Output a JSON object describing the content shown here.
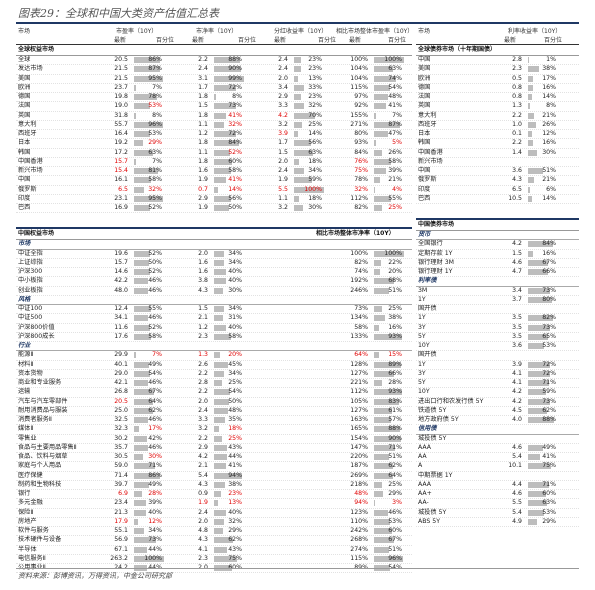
{
  "title": "图表29：全球和中国大类资产估值汇总表",
  "source": "资料来源：彭博资讯，万得资讯，中金公司研究部",
  "left_header": {
    "c1": "市场",
    "c2": "市盈率（10Y）",
    "c3": "市净率（10Y）",
    "c4": "分红收益率（10Y）",
    "c5": "相比市场整体市盈率（10Y）",
    "s1": "最新",
    "s2": "百分位"
  },
  "right_header": {
    "c1": "市场",
    "c2": "利率收益率（10Y）",
    "s1": "最新",
    "s2": "百分位"
  },
  "top_band": "全球权益市场",
  "top_band_right": "全球债券市场（十年期国债）",
  "mid_band": "中国权益市场",
  "mid_band_mid": "相比市场整体市净率（10Y）",
  "mid_band_right": "中国债券市场",
  "global_rows": [
    {
      "n": "全球",
      "a": "20.5",
      "ap": "86%",
      "ar": 0.86,
      "b": "2.2",
      "bp": "88%",
      "br": 0.88,
      "c": "2.4",
      "cp": "23%",
      "cr": 0.23,
      "d": "100%",
      "dp": "100%",
      "dr": 1.0
    },
    {
      "n": "发达市场",
      "a": "21.5",
      "ap": "87%",
      "ar": 0.87,
      "b": "2.4",
      "bp": "90%",
      "br": 0.9,
      "c": "2.4",
      "cp": "23%",
      "cr": 0.23,
      "d": "104%",
      "dp": "63%",
      "dr": 0.63
    },
    {
      "n": "美国",
      "a": "21.5",
      "ap": "95%",
      "ar": 0.95,
      "b": "3.1",
      "bp": "99%",
      "br": 0.99,
      "c": "2.0",
      "cp": "13%",
      "cr": 0.13,
      "d": "104%",
      "dp": "74%",
      "dr": 0.74
    },
    {
      "n": "欧洲",
      "a": "23.7",
      "ap": "7%",
      "ar": 0.07,
      "b": "1.7",
      "bp": "72%",
      "br": 0.72,
      "c": "3.4",
      "cp": "33%",
      "cr": 0.33,
      "d": "115%",
      "dp": "54%",
      "dr": 0.54
    },
    {
      "n": "德国",
      "a": "19.8",
      "ap": "78%",
      "ar": 0.78,
      "b": "1.8",
      "bp": "8%",
      "br": 0.08,
      "c": "2.9",
      "cp": "23%",
      "cr": 0.23,
      "d": "97%",
      "dp": "48%",
      "dr": 0.48
    },
    {
      "n": "法国",
      "a": "19.0",
      "ap": "53%",
      "ar": 0.53,
      "rap": true,
      "b": "1.5",
      "bp": "73%",
      "br": 0.73,
      "c": "3.3",
      "cp": "32%",
      "cr": 0.32,
      "d": "92%",
      "dp": "41%",
      "dr": 0.41
    },
    {
      "n": "英国",
      "a": "31.8",
      "ap": "8%",
      "ar": 0.08,
      "b": "1.8",
      "bp": "41%",
      "br": 0.41,
      "rbp": true,
      "c": "4.2",
      "cp": "70%",
      "cr": 0.7,
      "rc": true,
      "d": "155%",
      "dp": "7%",
      "dr": 0.07
    },
    {
      "n": "意大利",
      "a": "55.7",
      "ap": "96%",
      "ar": 0.96,
      "b": "1.1",
      "bp": "32%",
      "br": 0.32,
      "rbp": true,
      "c": "3.2",
      "cp": "25%",
      "cr": 0.25,
      "d": "271%",
      "dp": "87%",
      "dr": 0.87
    },
    {
      "n": "西班牙",
      "a": "16.4",
      "ap": "53%",
      "ar": 0.53,
      "b": "1.2",
      "bp": "72%",
      "br": 0.72,
      "c": "3.9",
      "cp": "14%",
      "cr": 0.14,
      "rc": true,
      "d": "80%",
      "dp": "47%",
      "dr": 0.47
    },
    {
      "n": "日本",
      "a": "19.2",
      "ap": "29%",
      "ar": 0.29,
      "rap": true,
      "b": "1.8",
      "bp": "84%",
      "br": 0.84,
      "c": "1.7",
      "cp": "56%",
      "cr": 0.56,
      "d": "93%",
      "dp": "5%",
      "dr": 0.05,
      "rdp": true
    },
    {
      "n": "韩国",
      "a": "17.2",
      "ap": "63%",
      "ar": 0.63,
      "b": "1.1",
      "bp": "52%",
      "br": 0.52,
      "rbp": true,
      "c": "1.5",
      "cp": "63%",
      "cr": 0.63,
      "d": "84%",
      "dp": "26%",
      "dr": 0.26
    },
    {
      "n": "中国香港",
      "a": "15.7",
      "ap": "7%",
      "ar": 0.07,
      "ra": true,
      "b": "1.8",
      "bp": "60%",
      "br": 0.6,
      "c": "2.0",
      "cp": "18%",
      "cr": 0.18,
      "d": "76%",
      "dp": "58%",
      "dr": 0.58,
      "rd": true
    },
    {
      "n": "新兴市场",
      "a": "15.4",
      "ap": "81%",
      "ar": 0.81,
      "ra": true,
      "b": "1.6",
      "bp": "58%",
      "br": 0.58,
      "c": "2.4",
      "cp": "34%",
      "cr": 0.34,
      "d": "75%",
      "dp": "39%",
      "dr": 0.39,
      "rd": true
    },
    {
      "n": "中国",
      "a": "16.1",
      "ap": "58%",
      "ar": 0.58,
      "b": "1.9",
      "bp": "41%",
      "br": 0.41,
      "rbp": true,
      "c": "1.9",
      "cp": "59%",
      "cr": 0.59,
      "d": "78%",
      "dp": "21%",
      "dr": 0.21
    },
    {
      "n": "俄罗斯",
      "a": "6.5",
      "ap": "32%",
      "ar": 0.32,
      "ra": true,
      "rap": true,
      "b": "0.7",
      "bp": "14%",
      "br": 0.14,
      "rb": true,
      "rbp": true,
      "c": "5.5",
      "cp": "100%",
      "cr": 1.0,
      "rc": true,
      "rcp": true,
      "d": "32%",
      "dp": "4%",
      "dr": 0.04,
      "rd": true,
      "rdp": true
    },
    {
      "n": "印度",
      "a": "23.1",
      "ap": "95%",
      "ar": 0.95,
      "b": "2.9",
      "bp": "56%",
      "br": 0.56,
      "c": "1.1",
      "cp": "18%",
      "cr": 0.18,
      "d": "112%",
      "dp": "55%",
      "dr": 0.55
    },
    {
      "n": "巴西",
      "a": "16.9",
      "ap": "52%",
      "ar": 0.52,
      "b": "1.9",
      "bp": "50%",
      "br": 0.5,
      "c": "3.2",
      "cp": "30%",
      "cr": 0.3,
      "d": "82%",
      "dp": "25%",
      "dr": 0.25,
      "rdp": true
    }
  ],
  "bond_global": [
    {
      "n": "中国",
      "a": "2.8",
      "p": "1%",
      "r": 0.01
    },
    {
      "n": "美国",
      "a": "2.3",
      "p": "38%",
      "r": 0.38
    },
    {
      "n": "欧洲",
      "a": "0.5",
      "p": "17%",
      "r": 0.17
    },
    {
      "n": "德国",
      "a": "0.8",
      "p": "16%",
      "r": 0.16
    },
    {
      "n": "法国",
      "a": "0.8",
      "p": "14%",
      "r": 0.14
    },
    {
      "n": "英国",
      "a": "1.3",
      "p": "8%",
      "r": 0.08
    },
    {
      "n": "意大利",
      "a": "2.2",
      "p": "21%",
      "r": 0.21
    },
    {
      "n": "西班牙",
      "a": "1.0",
      "p": "26%",
      "r": 0.26
    },
    {
      "n": "日本",
      "a": "0.1",
      "p": "12%",
      "r": 0.12
    },
    {
      "n": "韩国",
      "a": "2.2",
      "p": "16%",
      "r": 0.16
    },
    {
      "n": "中国香港",
      "a": "1.4",
      "p": "30%",
      "r": 0.3
    },
    {
      "n": "新兴市场",
      "a": "",
      "p": "",
      "r": 0
    },
    {
      "n": "中国",
      "a": "3.6",
      "p": "51%",
      "r": 0.51
    },
    {
      "n": "俄罗斯",
      "a": "4.3",
      "p": "21%",
      "r": 0.21
    },
    {
      "n": "印度",
      "a": "6.5",
      "p": "6%",
      "r": 0.06
    },
    {
      "n": "巴西",
      "a": "10.5",
      "p": "14%",
      "r": 0.14
    }
  ],
  "china_rows": [
    {
      "g": "市场"
    },
    {
      "n": "中证全指",
      "a": "19.6",
      "ap": "52%",
      "ar": 0.52,
      "b": "2.0",
      "bp": "34%",
      "br": 0.34,
      "d": "100%",
      "dp": "100%",
      "dr": 1.0
    },
    {
      "n": "上证综指",
      "a": "15.7",
      "ap": "50%",
      "ar": 0.5,
      "b": "1.6",
      "bp": "34%",
      "br": 0.34,
      "d": "82%",
      "dp": "22%",
      "dr": 0.22
    },
    {
      "n": "沪深300",
      "a": "14.6",
      "ap": "52%",
      "ar": 0.52,
      "b": "1.6",
      "bp": "40%",
      "br": 0.4,
      "d": "74%",
      "dp": "20%",
      "dr": 0.2
    },
    {
      "n": "中小板指",
      "a": "42.2",
      "ap": "46%",
      "ar": 0.46,
      "b": "3.8",
      "bp": "40%",
      "br": 0.4,
      "d": "192%",
      "dp": "68%",
      "dr": 0.68
    },
    {
      "n": "创业板指",
      "a": "48.0",
      "ap": "46%",
      "ar": 0.46,
      "b": "4.3",
      "bp": "30%",
      "br": 0.3,
      "d": "246%",
      "dp": "51%",
      "dr": 0.51
    },
    {
      "g": "风格"
    },
    {
      "n": "中证100",
      "a": "12.4",
      "ap": "55%",
      "ar": 0.55,
      "b": "1.5",
      "bp": "34%",
      "br": 0.34,
      "d": "73%",
      "dp": "25%",
      "dr": 0.25
    },
    {
      "n": "中证500",
      "a": "34.1",
      "ap": "46%",
      "ar": 0.46,
      "b": "2.1",
      "bp": "31%",
      "br": 0.31,
      "d": "134%",
      "dp": "38%",
      "dr": 0.38
    },
    {
      "n": "沪深800价值",
      "a": "11.6",
      "ap": "52%",
      "ar": 0.52,
      "b": "1.2",
      "bp": "40%",
      "br": 0.4,
      "d": "58%",
      "dp": "16%",
      "dr": 0.16
    },
    {
      "n": "沪深800成长",
      "a": "17.6",
      "ap": "58%",
      "ar": 0.58,
      "b": "2.3",
      "bp": "58%",
      "br": 0.58,
      "d": "133%",
      "dp": "93%",
      "dr": 0.93
    },
    {
      "g": "行业"
    },
    {
      "n": "能源Ⅱ",
      "a": "29.9",
      "ap": "7%",
      "ar": 0.07,
      "rap": true,
      "b": "1.3",
      "bp": "20%",
      "br": 0.2,
      "rb": true,
      "rbp": true,
      "d": "64%",
      "dp": "15%",
      "dr": 0.15,
      "rd": true,
      "rdp": true
    },
    {
      "n": "材料Ⅱ",
      "a": "40.1",
      "ap": "49%",
      "ar": 0.49,
      "b": "2.6",
      "bp": "45%",
      "br": 0.45,
      "d": "128%",
      "dp": "89%",
      "dr": 0.89
    },
    {
      "n": "资本货物",
      "a": "29.0",
      "ap": "54%",
      "ar": 0.54,
      "b": "2.2",
      "bp": "34%",
      "br": 0.34,
      "d": "127%",
      "dp": "66%",
      "dr": 0.66
    },
    {
      "n": "商业和专业服务",
      "a": "42.1",
      "ap": "46%",
      "ar": 0.46,
      "b": "2.8",
      "bp": "25%",
      "br": 0.25,
      "d": "221%",
      "dp": "28%",
      "dr": 0.28
    },
    {
      "n": "运输",
      "a": "26.8",
      "ap": "67%",
      "ar": 0.67,
      "b": "2.2",
      "bp": "54%",
      "br": 0.54,
      "d": "112%",
      "dp": "93%",
      "dr": 0.93
    },
    {
      "n": "汽车与汽车零部件",
      "a": "20.5",
      "ap": "64%",
      "ar": 0.64,
      "ra": true,
      "b": "2.0",
      "bp": "50%",
      "br": 0.5,
      "d": "105%",
      "dp": "83%",
      "dr": 0.83
    },
    {
      "n": "耐用消费品与服装",
      "a": "25.0",
      "ap": "62%",
      "ar": 0.62,
      "b": "2.4",
      "bp": "48%",
      "br": 0.48,
      "d": "127%",
      "dp": "61%",
      "dr": 0.61
    },
    {
      "n": "消费者服务Ⅱ",
      "a": "32.5",
      "ap": "46%",
      "ar": 0.46,
      "b": "3.3",
      "bp": "35%",
      "br": 0.35,
      "d": "163%",
      "dp": "57%",
      "dr": 0.57
    },
    {
      "n": "媒体Ⅱ",
      "a": "32.3",
      "ap": "17%",
      "ar": 0.17,
      "rap": true,
      "b": "3.2",
      "bp": "18%",
      "br": 0.18,
      "rbp": true,
      "d": "165%",
      "dp": "88%",
      "dr": 0.88
    },
    {
      "n": "零售业",
      "a": "30.2",
      "ap": "42%",
      "ar": 0.42,
      "b": "2.2",
      "bp": "25%",
      "br": 0.25,
      "rbp": true,
      "d": "154%",
      "dp": "90%",
      "dr": 0.9
    },
    {
      "n": "食品与主要用品零售Ⅱ",
      "a": "35.7",
      "ap": "46%",
      "ar": 0.46,
      "b": "2.9",
      "bp": "43%",
      "br": 0.43,
      "d": "147%",
      "dp": "71%",
      "dr": 0.71
    },
    {
      "n": "食品、饮料与烟草",
      "a": "30.5",
      "ap": "30%",
      "ar": 0.3,
      "rap": true,
      "b": "4.2",
      "bp": "44%",
      "br": 0.44,
      "d": "220%",
      "dp": "51%",
      "dr": 0.51
    },
    {
      "n": "家庭与个人用品",
      "a": "59.0",
      "ap": "71%",
      "ar": 0.71,
      "b": "2.1",
      "bp": "41%",
      "br": 0.41,
      "d": "187%",
      "dp": "62%",
      "dr": 0.62
    },
    {
      "n": "医疗保健",
      "a": "71.4",
      "ap": "86%",
      "ar": 0.86,
      "b": "5.4",
      "bp": "94%",
      "br": 0.94,
      "d": "269%",
      "dp": "64%",
      "dr": 0.64
    },
    {
      "n": "制药和生物科技",
      "a": "39.7",
      "ap": "49%",
      "ar": 0.49,
      "b": "4.3",
      "bp": "38%",
      "br": 0.38,
      "d": "218%",
      "dp": "25%",
      "dr": 0.25
    },
    {
      "n": "银行",
      "a": "6.9",
      "ap": "28%",
      "ar": 0.28,
      "ra": true,
      "rap": true,
      "b": "0.9",
      "bp": "23%",
      "br": 0.23,
      "rbp": true,
      "d": "48%",
      "dp": "29%",
      "dr": 0.29,
      "rd": true
    },
    {
      "n": "多元金融",
      "a": "23.4",
      "ap": "39%",
      "ar": 0.39,
      "b": "1.9",
      "bp": "13%",
      "br": 0.13,
      "rb": true,
      "rbp": true,
      "d": "94%",
      "dp": "3%",
      "dr": 0.03,
      "rd": true,
      "rdp": true
    },
    {
      "n": "保险Ⅱ",
      "a": "21.3",
      "ap": "40%",
      "ar": 0.4,
      "b": "2.4",
      "bp": "40%",
      "br": 0.4,
      "d": "123%",
      "dp": "46%",
      "dr": 0.46
    },
    {
      "n": "房地产",
      "a": "17.9",
      "ap": "12%",
      "ar": 0.12,
      "ra": true,
      "rap": true,
      "b": "2.0",
      "bp": "32%",
      "br": 0.32,
      "d": "110%",
      "dp": "53%",
      "dr": 0.53
    },
    {
      "n": "软件与服务",
      "a": "55.1",
      "ap": "34%",
      "ar": 0.34,
      "b": "4.8",
      "bp": "29%",
      "br": 0.29,
      "d": "242%",
      "dp": "60%",
      "dr": 0.6
    },
    {
      "n": "技术硬件与设备",
      "a": "56.9",
      "ap": "73%",
      "ar": 0.73,
      "b": "4.3",
      "bp": "62%",
      "br": 0.62,
      "d": "268%",
      "dp": "67%",
      "dr": 0.67
    },
    {
      "n": "半导体",
      "a": "67.1",
      "ap": "44%",
      "ar": 0.44,
      "b": "4.1",
      "bp": "43%",
      "br": 0.43,
      "d": "274%",
      "dp": "51%",
      "dr": 0.51
    },
    {
      "n": "电信服务Ⅱ",
      "a": "263.2",
      "ap": "100%",
      "ar": 1.0,
      "b": "2.3",
      "bp": "75%",
      "br": 0.75,
      "d": "115%",
      "dp": "96%",
      "dr": 0.96
    },
    {
      "n": "公用事业Ⅱ",
      "a": "24.2",
      "ap": "44%",
      "ar": 0.44,
      "b": "2.0",
      "bp": "60%",
      "br": 0.6,
      "d": "89%",
      "dp": "54%",
      "dr": 0.54
    }
  ],
  "china_bonds": [
    {
      "g": "货币"
    },
    {
      "n": "全国银行",
      "a": "4.2",
      "p": "84%",
      "r": 0.84
    },
    {
      "n": "定期存款 1Y",
      "a": "1.5",
      "p": "16%",
      "r": 0.16
    },
    {
      "n": "银行理财 3M",
      "a": "4.6",
      "p": "67%",
      "r": 0.67
    },
    {
      "n": "银行理财 1Y",
      "a": "4.7",
      "p": "66%",
      "r": 0.66
    },
    {
      "g": "利率债"
    },
    {
      "n": "3M",
      "a": "3.4",
      "p": "73%",
      "r": 0.73
    },
    {
      "n": "1Y",
      "a": "3.7",
      "p": "80%",
      "r": 0.8
    },
    {
      "n": "国开债",
      "a": "",
      "p": "",
      "r": 0
    },
    {
      "n": "1Y",
      "a": "3.5",
      "p": "82%",
      "r": 0.82
    },
    {
      "n": "3Y",
      "a": "3.5",
      "p": "73%",
      "r": 0.73
    },
    {
      "n": "5Y",
      "a": "3.5",
      "p": "65%",
      "r": 0.65
    },
    {
      "n": "10Y",
      "a": "3.6",
      "p": "53%",
      "r": 0.53
    },
    {
      "n": "国开债",
      "a": "",
      "p": "",
      "r": 0
    },
    {
      "n": "1Y",
      "a": "3.9",
      "p": "72%",
      "r": 0.72
    },
    {
      "n": "3Y",
      "a": "4.1",
      "p": "72%",
      "r": 0.72
    },
    {
      "n": "5Y",
      "a": "4.1",
      "p": "71%",
      "r": 0.71
    },
    {
      "n": "10Y",
      "a": "4.2",
      "p": "59%",
      "r": 0.59
    },
    {
      "n": "进出口行和农发行债 5Y",
      "a": "4.2",
      "p": "73%",
      "r": 0.73
    },
    {
      "n": "铁道债 5Y",
      "a": "4.5",
      "p": "62%",
      "r": 0.62
    },
    {
      "n": "地方政府债 5Y",
      "a": "4.0",
      "p": "88%",
      "r": 0.88
    },
    {
      "g": "信用债"
    },
    {
      "n": "城投债 5Y",
      "a": "",
      "p": "",
      "r": 0
    },
    {
      "n": "AAA",
      "a": "4.6",
      "p": "49%",
      "r": 0.49
    },
    {
      "n": "AA",
      "a": "5.4",
      "p": "41%",
      "r": 0.41
    },
    {
      "n": "A",
      "a": "10.1",
      "p": "75%",
      "r": 0.75
    },
    {
      "n": "中期票据 1Y",
      "a": "",
      "p": "",
      "r": 0
    },
    {
      "n": "AAA",
      "a": "4.4",
      "p": "71%",
      "r": 0.71
    },
    {
      "n": "AA+",
      "a": "4.6",
      "p": "60%",
      "r": 0.6
    },
    {
      "n": "AA-",
      "a": "5.5",
      "p": "63%",
      "r": 0.63
    },
    {
      "n": "城投债 5Y",
      "a": "5.4",
      "p": "53%",
      "r": 0.53
    },
    {
      "n": "ABS 5Y",
      "a": "4.9",
      "p": "29%",
      "r": 0.29
    }
  ]
}
